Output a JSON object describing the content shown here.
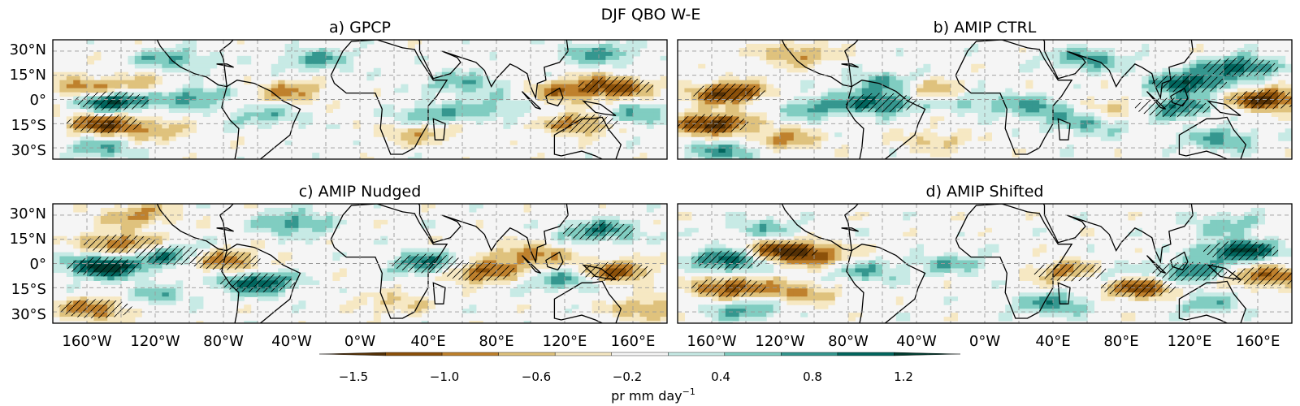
{
  "figure": {
    "title": "DJF QBO W-E",
    "panels": [
      {
        "id": "a",
        "title": "a) GPCP"
      },
      {
        "id": "b",
        "title": "b) AMIP CTRL"
      },
      {
        "id": "c",
        "title": "c) AMIP Nudged"
      },
      {
        "id": "d",
        "title": "d) AMIP Shifted"
      }
    ],
    "lat_ticks": [
      "30°N",
      "15°N",
      "0°",
      "15°S",
      "30°S"
    ],
    "lon_ticks": [
      "160°W",
      "120°W",
      "80°W",
      "40°W",
      "0°W",
      "40°E",
      "80°E",
      "120°E",
      "160°E"
    ],
    "colorbar": {
      "label_prefix": "pr mm day",
      "label_exp": "−1",
      "tick_labels": [
        "−1.5",
        "−1.0",
        "−0.6",
        "−0.2",
        "0.4",
        "0.8",
        "1.2"
      ],
      "colors": [
        "#543005",
        "#8c510a",
        "#bf812d",
        "#dfc27d",
        "#f6e8c3",
        "#f5f5f5",
        "#c7eae5",
        "#80cdc1",
        "#35978f",
        "#01665e",
        "#003c30"
      ]
    }
  },
  "chart_data": {
    "type": "heatmap",
    "title": "DJF QBO W-E",
    "variable": "pr",
    "units": "mm day−1",
    "lat_range": [
      -37,
      37
    ],
    "lon_range": [
      -180,
      180
    ],
    "color_range": [
      -1.6,
      1.6
    ],
    "panels": [
      {
        "id": "a",
        "title": "a) GPCP",
        "anomalies": [
          {
            "lon": -145,
            "lat": -1,
            "value": 1.5
          },
          {
            "lon": -100,
            "lat": 2,
            "value": 0.9
          },
          {
            "lon": -165,
            "lat": 7,
            "value": -0.9
          },
          {
            "lon": -130,
            "lat": 8,
            "value": -0.7
          },
          {
            "lon": -150,
            "lat": -15,
            "value": -1.2
          },
          {
            "lon": -120,
            "lat": -20,
            "value": -0.6
          },
          {
            "lon": -150,
            "lat": -30,
            "value": 0.7
          },
          {
            "lon": -110,
            "lat": 25,
            "value": 0.8
          },
          {
            "lon": -40,
            "lat": 5,
            "value": -0.8
          },
          {
            "lon": -55,
            "lat": -10,
            "value": 0.6
          },
          {
            "lon": -25,
            "lat": 25,
            "value": 0.7
          },
          {
            "lon": 40,
            "lat": -10,
            "value": 0.8
          },
          {
            "lon": 35,
            "lat": -20,
            "value": -0.7
          },
          {
            "lon": 60,
            "lat": 10,
            "value": 0.7
          },
          {
            "lon": 80,
            "lat": -5,
            "value": 0.6
          },
          {
            "lon": 120,
            "lat": 5,
            "value": -0.9
          },
          {
            "lon": 150,
            "lat": 8,
            "value": -1.1
          },
          {
            "lon": 130,
            "lat": -15,
            "value": -1.0
          },
          {
            "lon": 160,
            "lat": -10,
            "value": 0.8
          },
          {
            "lon": 140,
            "lat": 28,
            "value": 0.8
          }
        ]
      },
      {
        "id": "b",
        "title": "b) AMIP CTRL",
        "anomalies": [
          {
            "lon": -150,
            "lat": 4,
            "value": -1.4
          },
          {
            "lon": -160,
            "lat": -15,
            "value": -1.5
          },
          {
            "lon": -120,
            "lat": -25,
            "value": -0.8
          },
          {
            "lon": -150,
            "lat": -32,
            "value": 0.9
          },
          {
            "lon": -100,
            "lat": -5,
            "value": 0.8
          },
          {
            "lon": -60,
            "lat": -2,
            "value": 1.2
          },
          {
            "lon": -60,
            "lat": 10,
            "value": 0.8
          },
          {
            "lon": -110,
            "lat": 28,
            "value": -0.8
          },
          {
            "lon": -30,
            "lat": 5,
            "value": -0.9
          },
          {
            "lon": -10,
            "lat": 0,
            "value": 0.7
          },
          {
            "lon": 30,
            "lat": -5,
            "value": 0.8
          },
          {
            "lon": 60,
            "lat": -15,
            "value": 0.7
          },
          {
            "lon": 80,
            "lat": -5,
            "value": -0.7
          },
          {
            "lon": 60,
            "lat": 25,
            "value": 0.9
          },
          {
            "lon": 120,
            "lat": 10,
            "value": 1.3
          },
          {
            "lon": 110,
            "lat": -5,
            "value": 1.1
          },
          {
            "lon": 165,
            "lat": 0,
            "value": -1.4
          },
          {
            "lon": 150,
            "lat": 20,
            "value": 1.2
          },
          {
            "lon": 140,
            "lat": -25,
            "value": 0.8
          },
          {
            "lon": -30,
            "lat": -25,
            "value": -0.5
          }
        ]
      },
      {
        "id": "c",
        "title": "c) AMIP Nudged",
        "anomalies": [
          {
            "lon": -150,
            "lat": -2,
            "value": 1.6
          },
          {
            "lon": -110,
            "lat": 5,
            "value": 1.0
          },
          {
            "lon": -140,
            "lat": 12,
            "value": -1.1
          },
          {
            "lon": -80,
            "lat": 2,
            "value": -1.1
          },
          {
            "lon": -155,
            "lat": -28,
            "value": -1.0
          },
          {
            "lon": -120,
            "lat": -20,
            "value": 0.6
          },
          {
            "lon": -130,
            "lat": 30,
            "value": -0.8
          },
          {
            "lon": -60,
            "lat": -12,
            "value": 1.3
          },
          {
            "lon": -40,
            "lat": 25,
            "value": 0.9
          },
          {
            "lon": 40,
            "lat": 0,
            "value": 1.1
          },
          {
            "lon": 70,
            "lat": -5,
            "value": -1.2
          },
          {
            "lon": 100,
            "lat": 5,
            "value": -0.9
          },
          {
            "lon": 140,
            "lat": 20,
            "value": 1.0
          },
          {
            "lon": 150,
            "lat": -5,
            "value": -1.1
          },
          {
            "lon": 120,
            "lat": -10,
            "value": 0.8
          },
          {
            "lon": 170,
            "lat": -28,
            "value": -0.8
          },
          {
            "lon": 20,
            "lat": -25,
            "value": -0.5
          }
        ]
      },
      {
        "id": "d",
        "title": "d) AMIP Shifted",
        "anomalies": [
          {
            "lon": -150,
            "lat": 2,
            "value": 1.3
          },
          {
            "lon": -120,
            "lat": 8,
            "value": -1.2
          },
          {
            "lon": -100,
            "lat": 5,
            "value": -0.9
          },
          {
            "lon": -150,
            "lat": -15,
            "value": -1.2
          },
          {
            "lon": -110,
            "lat": -18,
            "value": -0.8
          },
          {
            "lon": -140,
            "lat": -28,
            "value": 0.8
          },
          {
            "lon": -130,
            "lat": 22,
            "value": 0.6
          },
          {
            "lon": -70,
            "lat": -5,
            "value": 0.7
          },
          {
            "lon": -20,
            "lat": 0,
            "value": 0.6
          },
          {
            "lon": 50,
            "lat": -5,
            "value": -1.0
          },
          {
            "lon": 90,
            "lat": -15,
            "value": -1.3
          },
          {
            "lon": 70,
            "lat": -8,
            "value": 0.7
          },
          {
            "lon": 40,
            "lat": -25,
            "value": 0.9
          },
          {
            "lon": 150,
            "lat": 8,
            "value": 1.4
          },
          {
            "lon": 165,
            "lat": -8,
            "value": -1.1
          },
          {
            "lon": 120,
            "lat": -5,
            "value": 1.0
          },
          {
            "lon": 130,
            "lat": -25,
            "value": 0.6
          },
          {
            "lon": 140,
            "lat": 25,
            "value": 0.6
          }
        ]
      }
    ]
  }
}
